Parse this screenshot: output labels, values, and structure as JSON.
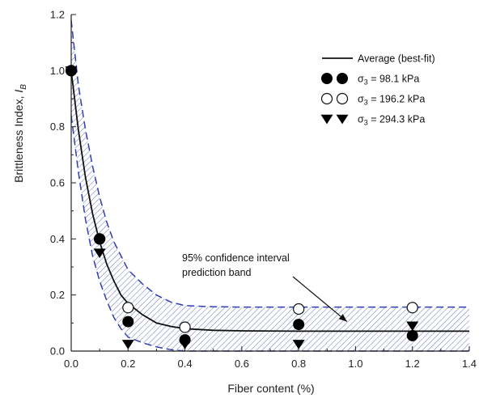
{
  "chart_data": {
    "type": "scatter",
    "title": "",
    "xlabel": "Fiber content (%)",
    "ylabel": "Brittleness Index, I_B",
    "ylabel_parts": {
      "text": "Brittleness Index, ",
      "symbol": "I",
      "sub": "B"
    },
    "xlim": [
      0.0,
      1.4
    ],
    "ylim": [
      0.0,
      1.2
    ],
    "xticks": [
      0.0,
      0.2,
      0.4,
      0.6,
      0.8,
      1.0,
      1.2,
      1.4
    ],
    "yticks": [
      0.0,
      0.2,
      0.4,
      0.6,
      0.8,
      1.0,
      1.2
    ],
    "xtick_labels": [
      "0.0",
      "0.2",
      "0.4",
      "0.6",
      "0.8",
      "1.0",
      "1.2",
      "1.4"
    ],
    "ytick_labels": [
      "0.0",
      "0.2",
      "0.4",
      "0.6",
      "0.8",
      "1.0",
      "1.2"
    ],
    "legend_position": "top-right",
    "fit": {
      "name": "Average (best-fit)",
      "x": [
        0.0,
        0.025,
        0.05,
        0.075,
        0.1,
        0.125,
        0.15,
        0.175,
        0.2,
        0.25,
        0.3,
        0.35,
        0.4,
        0.5,
        0.6,
        0.8,
        1.0,
        1.2,
        1.4
      ],
      "y": [
        1.0,
        0.79,
        0.62,
        0.49,
        0.39,
        0.31,
        0.25,
        0.2,
        0.17,
        0.13,
        0.1,
        0.088,
        0.08,
        0.074,
        0.072,
        0.071,
        0.071,
        0.071,
        0.071
      ]
    },
    "band_upper": {
      "x": [
        0.0,
        0.025,
        0.05,
        0.075,
        0.1,
        0.125,
        0.15,
        0.175,
        0.2,
        0.25,
        0.3,
        0.35,
        0.4,
        0.5,
        0.6,
        0.8,
        1.0,
        1.2,
        1.4
      ],
      "y": [
        1.18,
        0.95,
        0.79,
        0.66,
        0.55,
        0.46,
        0.39,
        0.34,
        0.29,
        0.24,
        0.2,
        0.175,
        0.162,
        0.158,
        0.157,
        0.157,
        0.157,
        0.157,
        0.157
      ]
    },
    "band_lower": {
      "x": [
        0.0,
        0.025,
        0.05,
        0.075,
        0.1,
        0.125,
        0.15,
        0.175,
        0.2,
        0.25,
        0.3,
        0.35,
        0.4,
        0.5,
        0.6,
        0.8,
        1.0,
        1.2,
        1.4
      ],
      "y": [
        0.84,
        0.64,
        0.47,
        0.34,
        0.25,
        0.18,
        0.12,
        0.08,
        0.05,
        0.03,
        0.015,
        0.005,
        0.0,
        0.0,
        0.0,
        0.0,
        0.0,
        0.0,
        0.0
      ]
    },
    "series": [
      {
        "name": "σ3 = 98.1 kPa",
        "label_sigma": "σ",
        "label_sub": "3",
        "label_rest": " = 98.1 kPa",
        "marker": "filled-circle",
        "x": [
          0.0,
          0.1,
          0.2,
          0.4,
          0.8,
          1.2
        ],
        "y": [
          1.0,
          0.4,
          0.105,
          0.04,
          0.095,
          0.055
        ]
      },
      {
        "name": "σ3 = 196.2 kPa",
        "label_sigma": "σ",
        "label_sub": "3",
        "label_rest": " = 196.2 kPa",
        "marker": "open-circle",
        "x": [
          0.0,
          0.1,
          0.2,
          0.4,
          0.8,
          1.2
        ],
        "y": [
          1.0,
          0.4,
          0.155,
          0.085,
          0.15,
          0.155
        ]
      },
      {
        "name": "σ3 = 294.3 kPa",
        "label_sigma": "σ",
        "label_sub": "3",
        "label_rest": " = 294.3 kPa",
        "marker": "filled-triangle-down",
        "x": [
          0.0,
          0.1,
          0.2,
          0.4,
          0.8,
          1.2
        ],
        "y": [
          1.0,
          0.35,
          0.025,
          0.025,
          0.025,
          0.09
        ]
      }
    ],
    "annotation": {
      "lines": [
        "95% confidence interval",
        "prediction band"
      ],
      "arrow_to": {
        "x": 0.97,
        "y": 0.105
      }
    },
    "colors": {
      "fit": "#111111",
      "band": "#2e3fb5",
      "markers": "#000000"
    }
  }
}
